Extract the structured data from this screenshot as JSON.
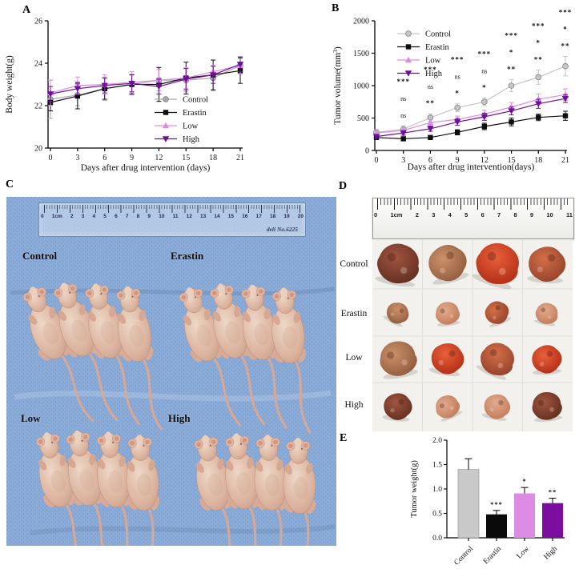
{
  "panels": {
    "A": "A",
    "B": "B",
    "C": "C",
    "D": "D",
    "E": "E"
  },
  "colors": {
    "control": "#a9a9a9",
    "erastin": "#0d0d0d",
    "low": "#dd8ce4",
    "high": "#6d0f9b",
    "cloth_blue": "#8cacd8",
    "photo_white": "#f2f1ed"
  },
  "chart_data": [
    {
      "id": "A",
      "type": "line",
      "xlabel": "Days after drug intervention (days)",
      "ylabel": "Body weight(g)",
      "x": [
        0,
        3,
        6,
        9,
        12,
        15,
        18,
        21
      ],
      "ylim": [
        20,
        26
      ],
      "yticks": [
        20,
        22,
        24,
        26
      ],
      "legend_position": "bottom-right",
      "grid": false,
      "series": [
        {
          "name": "Control",
          "color": "#a9a9a9",
          "marker": "circle",
          "values": [
            22.3,
            22.5,
            22.8,
            23.0,
            23.2,
            23.2,
            23.3,
            23.9
          ],
          "errors": [
            0.9,
            0.5,
            0.55,
            0.5,
            0.5,
            0.55,
            0.6,
            0.4
          ]
        },
        {
          "name": "Erastin",
          "color": "#0d0d0d",
          "marker": "square",
          "values": [
            22.15,
            22.45,
            22.8,
            23.0,
            23.0,
            23.3,
            23.45,
            23.65
          ],
          "errors": [
            0.4,
            0.6,
            0.5,
            0.45,
            0.8,
            0.75,
            0.7,
            0.6
          ]
        },
        {
          "name": "Low",
          "color": "#dd8ce4",
          "marker": "triangle-up",
          "values": [
            22.6,
            22.95,
            23.0,
            23.1,
            23.2,
            23.3,
            23.6,
            23.9
          ],
          "errors": [
            0.6,
            0.4,
            0.45,
            0.5,
            0.5,
            0.5,
            0.3,
            0.4
          ]
        },
        {
          "name": "High",
          "color": "#6d0f9b",
          "marker": "triangle-down",
          "values": [
            22.55,
            22.8,
            22.95,
            23.05,
            22.9,
            23.25,
            23.45,
            23.95
          ],
          "errors": [
            0.35,
            0.3,
            0.35,
            0.4,
            0.35,
            0.5,
            0.4,
            0.35
          ]
        }
      ]
    },
    {
      "id": "B",
      "type": "line",
      "xlabel": "Days after drug intervention(days)",
      "ylabel": "Tumor volume(mm³)",
      "ylabel_parts": {
        "main": "Tumor volume(mm",
        "sup": "3",
        "end": ")"
      },
      "x": [
        0,
        3,
        6,
        9,
        12,
        15,
        18,
        21
      ],
      "ylim": [
        0,
        2000
      ],
      "yticks": [
        0,
        500,
        1000,
        1500,
        2000
      ],
      "legend_position": "top-left",
      "grid": false,
      "series": [
        {
          "name": "Control",
          "color": "#c6c6c6",
          "marker": "circle",
          "values": [
            280,
            330,
            505,
            660,
            750,
            1000,
            1130,
            1300
          ],
          "errors": [
            40,
            50,
            60,
            60,
            60,
            90,
            110,
            150
          ]
        },
        {
          "name": "Erastin",
          "color": "#0d0d0d",
          "marker": "square",
          "values": [
            200,
            180,
            200,
            280,
            370,
            440,
            510,
            535
          ],
          "errors": [
            30,
            30,
            30,
            40,
            50,
            60,
            50,
            70
          ]
        },
        {
          "name": "Low",
          "color": "#dd8ce4",
          "marker": "triangle-up",
          "values": [
            270,
            310,
            430,
            480,
            560,
            670,
            790,
            860
          ],
          "errors": [
            35,
            40,
            50,
            50,
            60,
            70,
            80,
            90
          ]
        },
        {
          "name": "High",
          "color": "#6d0f9b",
          "marker": "triangle-down",
          "values": [
            215,
            270,
            335,
            440,
            520,
            610,
            720,
            800
          ],
          "errors": [
            30,
            35,
            40,
            50,
            55,
            60,
            70,
            60
          ]
        }
      ],
      "significance": [
        [
          "***",
          "ns",
          "ns"
        ],
        [
          "***",
          "ns",
          "**"
        ],
        [
          "***",
          "ns",
          "*"
        ],
        [
          "***",
          "ns",
          "*"
        ],
        [
          "***",
          "*",
          "**"
        ],
        [
          "***",
          "*",
          "**"
        ],
        [
          "***",
          "*",
          "**"
        ]
      ]
    },
    {
      "id": "E",
      "type": "bar",
      "ylabel": "Tumor weight(g)",
      "categories": [
        "Control",
        "Erastin",
        "Low",
        "High"
      ],
      "values": [
        1.4,
        0.48,
        0.91,
        0.71
      ],
      "errors": [
        0.22,
        0.08,
        0.12,
        0.1
      ],
      "sig": [
        "",
        "***",
        "*",
        "**"
      ],
      "colors": [
        "#c9c9c9",
        "#0a0a0a",
        "#dd8ce4",
        "#7b0e9e"
      ],
      "ylim": [
        0,
        2.0
      ],
      "yticks": [
        0,
        0.5,
        1.0,
        1.5,
        2.0
      ],
      "ytick_labels": [
        "0.0",
        "0.5",
        "1.0",
        "1.5",
        "2.0"
      ],
      "grid": false
    }
  ],
  "panelC": {
    "labels": [
      "Control",
      "Erastin",
      "Low",
      "High"
    ],
    "ruler": {
      "numbers": [
        "0",
        "1cm",
        "2",
        "3",
        "4",
        "5",
        "6",
        "7",
        "8",
        "9",
        "10",
        "11",
        "12",
        "13",
        "14",
        "15",
        "16",
        "17",
        "18",
        "19",
        "20"
      ],
      "brand": "deli No.6225"
    }
  },
  "panelD": {
    "row_labels": [
      "Control",
      "Erastin",
      "Low",
      "High"
    ],
    "ruler": {
      "numbers": [
        "0",
        "1cm",
        "2",
        "3",
        "4",
        "5",
        "6",
        "7",
        "8",
        "9",
        "10",
        "11"
      ]
    }
  }
}
